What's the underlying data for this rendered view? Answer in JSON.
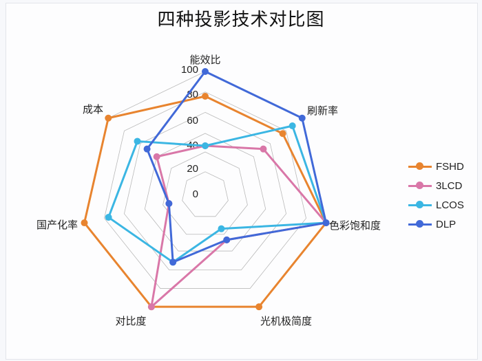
{
  "chart_data": {
    "type": "radar",
    "title": "四种投影技术对比图",
    "axes": [
      "能效比",
      "刷新率",
      "色彩饱和度",
      "光机极简度",
      "对比度",
      "国产化率",
      "成本"
    ],
    "radial_ticks": [
      "0",
      "20",
      "40",
      "60",
      "80",
      "100"
    ],
    "range": [
      0,
      100
    ],
    "legend_position": "right",
    "series": [
      {
        "name": "FSHD",
        "color": "#e8842f",
        "values": [
          80,
          80,
          100,
          100,
          100,
          100,
          100
        ]
      },
      {
        "name": "3LCD",
        "color": "#d977a8",
        "values": [
          40,
          60,
          100,
          40,
          100,
          30,
          50
        ]
      },
      {
        "name": "LCOS",
        "color": "#3bb6e3",
        "values": [
          40,
          90,
          100,
          30,
          60,
          80,
          70
        ]
      },
      {
        "name": "DLP",
        "color": "#4169d8",
        "values": [
          100,
          100,
          100,
          40,
          60,
          30,
          60
        ]
      }
    ]
  },
  "legend": {
    "items": [
      {
        "label": "FSHD",
        "color": "#e8842f"
      },
      {
        "label": "3LCD",
        "color": "#d977a8"
      },
      {
        "label": "LCOS",
        "color": "#3bb6e3"
      },
      {
        "label": "DLP",
        "color": "#4169d8"
      }
    ]
  }
}
